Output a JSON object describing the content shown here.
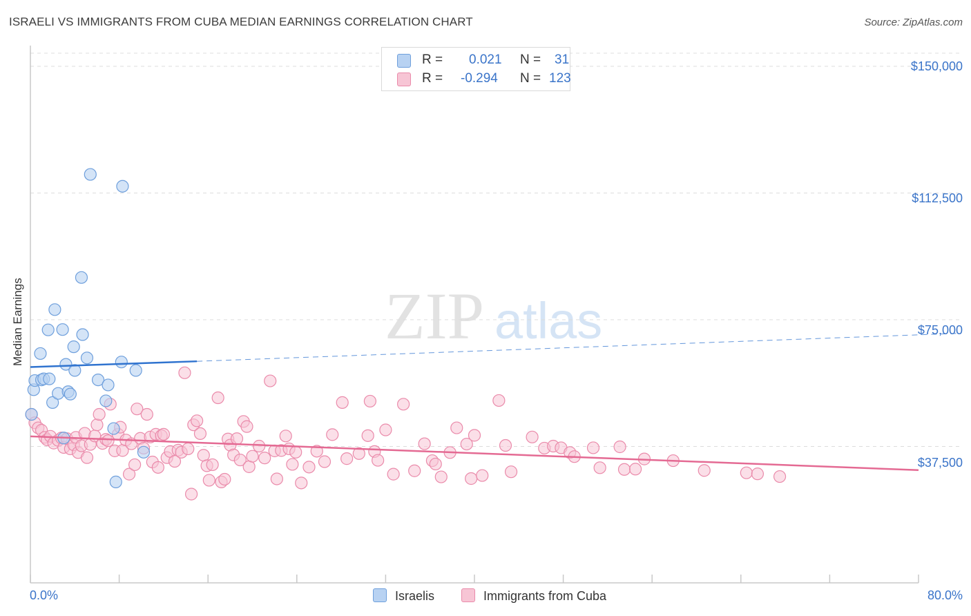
{
  "chart_data": {
    "type": "scatter",
    "title": "ISRAELI VS IMMIGRANTS FROM CUBA MEDIAN EARNINGS CORRELATION CHART",
    "source": "Source: ZipAtlas.com",
    "ylabel": "Median Earnings",
    "xlabel": "",
    "xlim": [
      0,
      80
    ],
    "ylim": [
      0,
      155000
    ],
    "x_tick_labels": [
      "0.0%",
      "80.0%"
    ],
    "y_ticks": [
      {
        "value": 150000,
        "label": "$150,000"
      },
      {
        "value": 112500,
        "label": "$112,500"
      },
      {
        "value": 75000,
        "label": "$75,000"
      },
      {
        "value": 37500,
        "label": "$37,500"
      }
    ],
    "watermark": {
      "zip": "ZIP",
      "atlas": "atlas"
    },
    "colors": {
      "israelis_fill": "#b8d2f2",
      "israelis_stroke": "#6e9fdc",
      "israelis_line": "#2f73cf",
      "cuba_fill": "#f7c5d5",
      "cuba_stroke": "#ea8aaa",
      "cuba_line": "#e46a93",
      "grid": "#dcdcdc",
      "axis": "#c8c8c8",
      "tick_text": "#3a74c9"
    },
    "legend": {
      "r_label": "R =",
      "n_label": "N =",
      "rows": [
        {
          "r": "0.021",
          "n": "31"
        },
        {
          "r": "-0.294",
          "n": "123"
        }
      ]
    },
    "series": [
      {
        "name": "Israelis",
        "trend": {
          "x0": 0,
          "y0": 61000,
          "x1": 15,
          "y1": 62700,
          "dash_x1": 80,
          "dash_y1": 71000
        },
        "points": [
          [
            0.1,
            47000
          ],
          [
            0.3,
            54300
          ],
          [
            0.4,
            57000
          ],
          [
            0.9,
            65000
          ],
          [
            1.0,
            57200
          ],
          [
            1.2,
            57500
          ],
          [
            1.6,
            72000
          ],
          [
            1.7,
            57500
          ],
          [
            2.0,
            50500
          ],
          [
            2.2,
            78000
          ],
          [
            2.5,
            53200
          ],
          [
            2.9,
            72100
          ],
          [
            3.0,
            40000
          ],
          [
            3.2,
            61800
          ],
          [
            3.4,
            53700
          ],
          [
            3.6,
            53000
          ],
          [
            3.9,
            67000
          ],
          [
            4.0,
            60000
          ],
          [
            4.6,
            87500
          ],
          [
            4.7,
            70600
          ],
          [
            5.1,
            63700
          ],
          [
            5.4,
            118000
          ],
          [
            6.1,
            57200
          ],
          [
            6.8,
            51000
          ],
          [
            7.0,
            55700
          ],
          [
            7.5,
            42800
          ],
          [
            7.7,
            27000
          ],
          [
            8.2,
            62500
          ],
          [
            8.3,
            114500
          ],
          [
            9.5,
            60000
          ],
          [
            10.2,
            35800
          ]
        ]
      },
      {
        "name": "Immigrants from Cuba",
        "trend": {
          "x0": 0,
          "y0": 40500,
          "x1": 80,
          "y1": 30500
        },
        "points": [
          [
            0.1,
            47000
          ],
          [
            0.4,
            44500
          ],
          [
            0.7,
            43000
          ],
          [
            1.0,
            42300
          ],
          [
            1.3,
            40200
          ],
          [
            1.5,
            39500
          ],
          [
            1.8,
            40500
          ],
          [
            2.1,
            38500
          ],
          [
            2.5,
            39300
          ],
          [
            2.8,
            40000
          ],
          [
            3.0,
            37200
          ],
          [
            3.3,
            39800
          ],
          [
            3.6,
            36800
          ],
          [
            3.9,
            38000
          ],
          [
            4.1,
            40200
          ],
          [
            4.3,
            35700
          ],
          [
            4.6,
            37700
          ],
          [
            4.9,
            41400
          ],
          [
            5.1,
            34200
          ],
          [
            5.4,
            38100
          ],
          [
            5.8,
            40600
          ],
          [
            6.0,
            43900
          ],
          [
            6.2,
            47000
          ],
          [
            6.5,
            38400
          ],
          [
            6.8,
            39600
          ],
          [
            7.0,
            39200
          ],
          [
            7.2,
            50000
          ],
          [
            7.6,
            36200
          ],
          [
            7.9,
            41100
          ],
          [
            8.1,
            43200
          ],
          [
            8.3,
            36300
          ],
          [
            8.6,
            39400
          ],
          [
            8.9,
            29300
          ],
          [
            9.1,
            38300
          ],
          [
            9.4,
            32100
          ],
          [
            9.6,
            48600
          ],
          [
            9.9,
            39900
          ],
          [
            10.2,
            37000
          ],
          [
            10.5,
            47000
          ],
          [
            10.8,
            40300
          ],
          [
            11.0,
            32900
          ],
          [
            11.3,
            41100
          ],
          [
            11.5,
            31300
          ],
          [
            11.8,
            40700
          ],
          [
            12.0,
            41100
          ],
          [
            12.3,
            34200
          ],
          [
            12.6,
            36000
          ],
          [
            13.0,
            33100
          ],
          [
            13.3,
            36400
          ],
          [
            13.6,
            35800
          ],
          [
            13.9,
            59300
          ],
          [
            14.2,
            36800
          ],
          [
            14.5,
            23400
          ],
          [
            14.7,
            43900
          ],
          [
            15.0,
            45100
          ],
          [
            15.3,
            41300
          ],
          [
            15.6,
            34900
          ],
          [
            15.9,
            31800
          ],
          [
            16.1,
            27500
          ],
          [
            16.4,
            32100
          ],
          [
            16.9,
            51900
          ],
          [
            17.2,
            27000
          ],
          [
            17.5,
            27800
          ],
          [
            17.8,
            39700
          ],
          [
            18.0,
            37900
          ],
          [
            18.3,
            35000
          ],
          [
            18.6,
            39800
          ],
          [
            18.9,
            33500
          ],
          [
            19.2,
            44900
          ],
          [
            19.5,
            43400
          ],
          [
            19.7,
            31500
          ],
          [
            20.0,
            34600
          ],
          [
            20.6,
            37600
          ],
          [
            21.1,
            34100
          ],
          [
            21.6,
            56900
          ],
          [
            22.0,
            36200
          ],
          [
            22.2,
            27900
          ],
          [
            22.6,
            36300
          ],
          [
            23.0,
            40600
          ],
          [
            23.3,
            36800
          ],
          [
            23.6,
            32200
          ],
          [
            23.9,
            35800
          ],
          [
            24.4,
            26700
          ],
          [
            25.1,
            31400
          ],
          [
            25.8,
            36100
          ],
          [
            26.5,
            33000
          ],
          [
            27.2,
            41000
          ],
          [
            28.1,
            50500
          ],
          [
            28.5,
            33900
          ],
          [
            29.6,
            35400
          ],
          [
            30.4,
            40700
          ],
          [
            30.6,
            50900
          ],
          [
            31.0,
            36000
          ],
          [
            31.3,
            33400
          ],
          [
            32.0,
            42400
          ],
          [
            32.7,
            29300
          ],
          [
            33.6,
            50000
          ],
          [
            34.6,
            30300
          ],
          [
            35.5,
            38300
          ],
          [
            36.2,
            33300
          ],
          [
            36.5,
            32300
          ],
          [
            37.0,
            28500
          ],
          [
            37.8,
            35700
          ],
          [
            38.4,
            43000
          ],
          [
            39.3,
            38200
          ],
          [
            39.7,
            28000
          ],
          [
            40.0,
            40800
          ],
          [
            40.7,
            28900
          ],
          [
            42.2,
            51100
          ],
          [
            42.8,
            37800
          ],
          [
            43.3,
            30000
          ],
          [
            45.2,
            40300
          ],
          [
            46.3,
            37000
          ],
          [
            47.1,
            37600
          ],
          [
            47.8,
            37100
          ],
          [
            48.6,
            35700
          ],
          [
            49.0,
            34500
          ],
          [
            50.7,
            37100
          ],
          [
            51.3,
            31200
          ],
          [
            53.1,
            37400
          ],
          [
            53.5,
            30700
          ],
          [
            54.5,
            30800
          ],
          [
            55.3,
            33800
          ],
          [
            57.9,
            33300
          ],
          [
            60.7,
            30400
          ],
          [
            64.5,
            29700
          ],
          [
            65.5,
            29400
          ],
          [
            67.5,
            28600
          ]
        ]
      }
    ]
  }
}
